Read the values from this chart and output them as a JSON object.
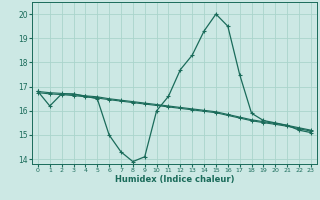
{
  "title": "",
  "xlabel": "Humidex (Indice chaleur)",
  "bg_color": "#cce8e4",
  "grid_color": "#aad4cc",
  "line_color": "#1a6b5a",
  "xlim": [
    -0.5,
    23.5
  ],
  "ylim": [
    13.8,
    20.5
  ],
  "yticks": [
    14,
    15,
    16,
    17,
    18,
    19,
    20
  ],
  "xticks": [
    0,
    1,
    2,
    3,
    4,
    5,
    6,
    7,
    8,
    9,
    10,
    11,
    12,
    13,
    14,
    15,
    16,
    17,
    18,
    19,
    20,
    21,
    22,
    23
  ],
  "series1_x": [
    0,
    1,
    2,
    3,
    4,
    5,
    6,
    7,
    8,
    9,
    10,
    11,
    12,
    13,
    14,
    15,
    16,
    17,
    18,
    19,
    20,
    21,
    22,
    23
  ],
  "series1_y": [
    16.8,
    16.2,
    16.7,
    16.7,
    16.6,
    16.5,
    15.0,
    14.3,
    13.9,
    14.1,
    16.0,
    16.6,
    17.7,
    18.3,
    19.3,
    20.0,
    19.5,
    17.5,
    15.9,
    15.6,
    15.5,
    15.4,
    15.2,
    15.1
  ],
  "series2_x": [
    0,
    1,
    2,
    3,
    4,
    5,
    6,
    7,
    8,
    9,
    10,
    11,
    12,
    13,
    14,
    15,
    16,
    17,
    18,
    19,
    20,
    21,
    22,
    23
  ],
  "series2_y": [
    16.8,
    16.75,
    16.72,
    16.68,
    16.62,
    16.58,
    16.5,
    16.44,
    16.38,
    16.32,
    16.26,
    16.2,
    16.14,
    16.08,
    16.02,
    15.96,
    15.85,
    15.74,
    15.63,
    15.55,
    15.48,
    15.4,
    15.3,
    15.2
  ],
  "series3_x": [
    0,
    1,
    2,
    3,
    4,
    5,
    6,
    7,
    8,
    9,
    10,
    11,
    12,
    13,
    14,
    15,
    16,
    17,
    18,
    19,
    20,
    21,
    22,
    23
  ],
  "series3_y": [
    16.75,
    16.7,
    16.67,
    16.63,
    16.58,
    16.53,
    16.46,
    16.4,
    16.34,
    16.28,
    16.22,
    16.16,
    16.1,
    16.04,
    15.98,
    15.92,
    15.81,
    15.7,
    15.59,
    15.51,
    15.44,
    15.36,
    15.26,
    15.16
  ]
}
